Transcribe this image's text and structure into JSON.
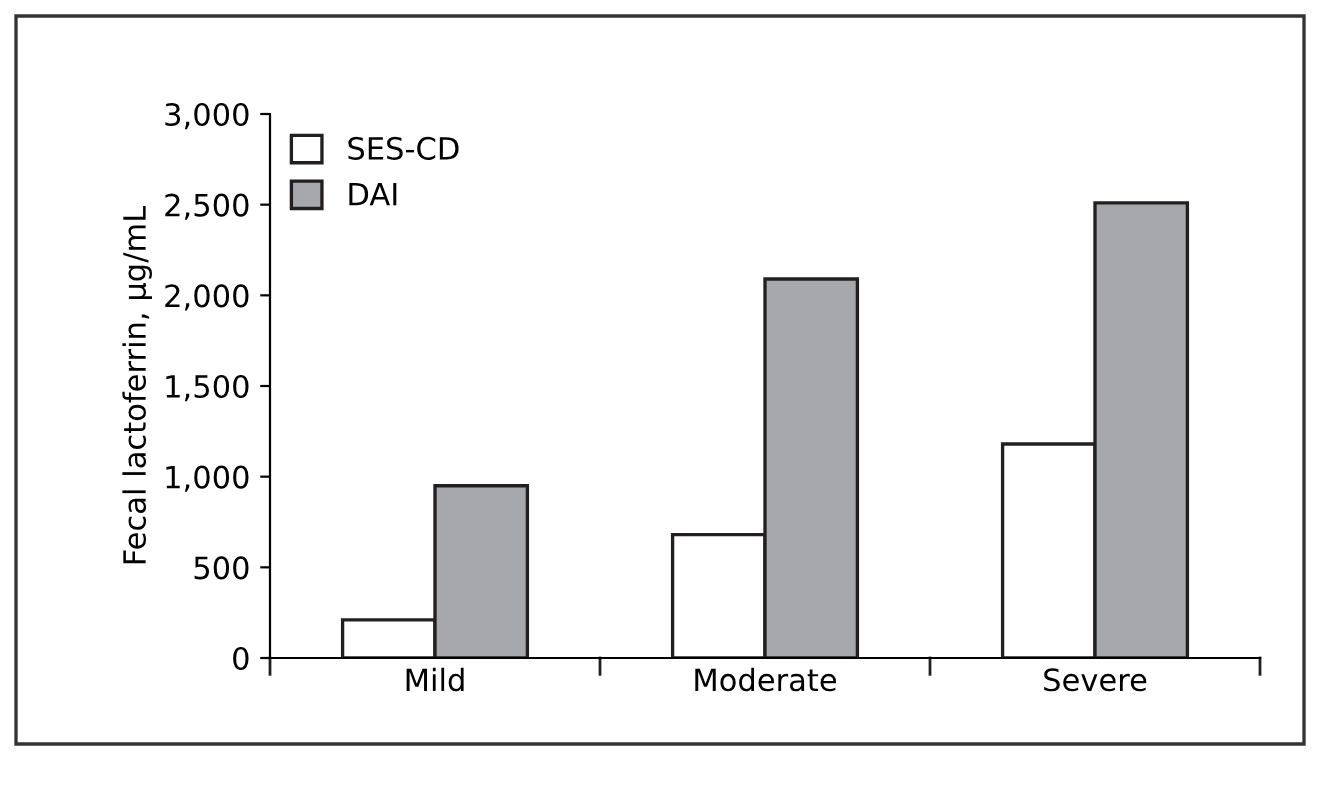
{
  "chart_data": {
    "type": "bar",
    "ylabel": "Fecal lactoferrin, µg/mL",
    "categories": [
      "Mild",
      "Moderate",
      "Severe"
    ],
    "series": [
      {
        "name": "SES-CD",
        "color": "#ffffff",
        "values": [
          210,
          680,
          1180
        ]
      },
      {
        "name": "DAI",
        "color": "#a7a8ab",
        "values": [
          950,
          2090,
          2510
        ]
      }
    ],
    "ylim": [
      0,
      3000
    ],
    "yticks": [
      {
        "value": 0,
        "label": "0"
      },
      {
        "value": 500,
        "label": "500"
      },
      {
        "value": 1000,
        "label": "1,000"
      },
      {
        "value": 1500,
        "label": "1,500"
      },
      {
        "value": 2000,
        "label": "2,000"
      },
      {
        "value": 2500,
        "label": "2,500"
      },
      {
        "value": 3000,
        "label": "3,000"
      }
    ],
    "grid": false,
    "legend": "top left"
  }
}
